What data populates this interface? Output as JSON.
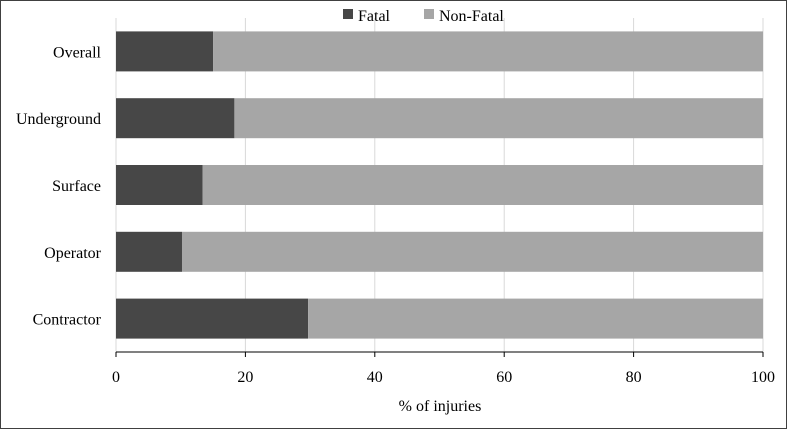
{
  "chart_data": {
    "type": "bar",
    "orientation": "horizontal",
    "stacked": true,
    "categories": [
      "Overall",
      "Underground",
      "Surface",
      "Operator",
      "Contractor"
    ],
    "series": [
      {
        "name": "Fatal",
        "values": [
          15,
          18.3,
          13.4,
          10.2,
          29.7
        ],
        "color": "#474747"
      },
      {
        "name": "Non-Fatal",
        "values": [
          85,
          81.7,
          86.6,
          89.8,
          70.3
        ],
        "color": "#a6a6a6"
      }
    ],
    "xlabel": "% of injuries",
    "ylabel": "",
    "xlim": [
      0,
      100
    ],
    "xticks": [
      "0",
      "20",
      "40",
      "60",
      "80",
      "100"
    ],
    "grid": "vertical",
    "legend": "top-center"
  }
}
